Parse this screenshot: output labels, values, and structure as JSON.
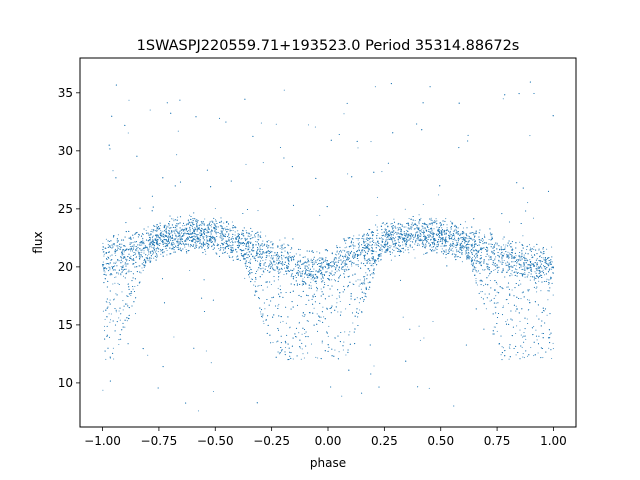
{
  "chart_data": {
    "type": "scatter",
    "title": "1SWASPJ220559.71+193523.0 Period 35314.88672s",
    "xlabel": "phase",
    "ylabel": "flux",
    "xlim": [
      -1.1,
      1.1
    ],
    "ylim": [
      6.2,
      38.0
    ],
    "xticks": [
      -1.0,
      -0.75,
      -0.5,
      -0.25,
      0.0,
      0.25,
      0.5,
      0.75,
      1.0
    ],
    "xtick_labels": [
      "−1.00",
      "−0.75",
      "−0.50",
      "−0.25",
      "0.00",
      "0.25",
      "0.50",
      "0.75",
      "1.00"
    ],
    "yticks": [
      10,
      15,
      20,
      25,
      30,
      35
    ],
    "ytick_labels": [
      "10",
      "15",
      "20",
      "25",
      "30",
      "35"
    ],
    "grid": false,
    "legend": "none",
    "point_color": "#1f77b4",
    "series": [
      {
        "x_range": [
          -1.0,
          1.0
        ],
        "envelope": {
          "phase": [
            -1.0,
            -0.9,
            -0.8,
            -0.7,
            -0.6,
            -0.5,
            -0.4,
            -0.3,
            -0.2,
            -0.15,
            -0.1,
            -0.05,
            0.0,
            0.05,
            0.1,
            0.2,
            0.3,
            0.4,
            0.5,
            0.6,
            0.7,
            0.8,
            0.9,
            1.0
          ],
          "upper_flux": [
            22.0,
            22.3,
            23.0,
            23.6,
            23.8,
            23.6,
            23.1,
            22.4,
            21.8,
            21.3,
            20.9,
            20.8,
            21.0,
            21.6,
            22.2,
            23.0,
            23.6,
            23.8,
            23.6,
            23.1,
            22.4,
            21.8,
            21.3,
            21.0
          ],
          "lower_flux": [
            19.3,
            19.8,
            20.8,
            21.6,
            21.9,
            21.7,
            21.1,
            20.4,
            19.8,
            19.3,
            18.8,
            18.6,
            18.7,
            19.3,
            19.9,
            20.9,
            21.6,
            21.9,
            21.7,
            21.1,
            20.4,
            19.8,
            19.3,
            19.0
          ]
        },
        "eclipse_floor_flux": 12.0,
        "eclipse_floor_phases": [
          [
            -1.0,
            -0.95
          ],
          [
            -0.23,
            0.08
          ],
          [
            0.77,
            1.0
          ]
        ],
        "scatter_flux_range": [
          7.5,
          36.0
        ]
      }
    ]
  }
}
